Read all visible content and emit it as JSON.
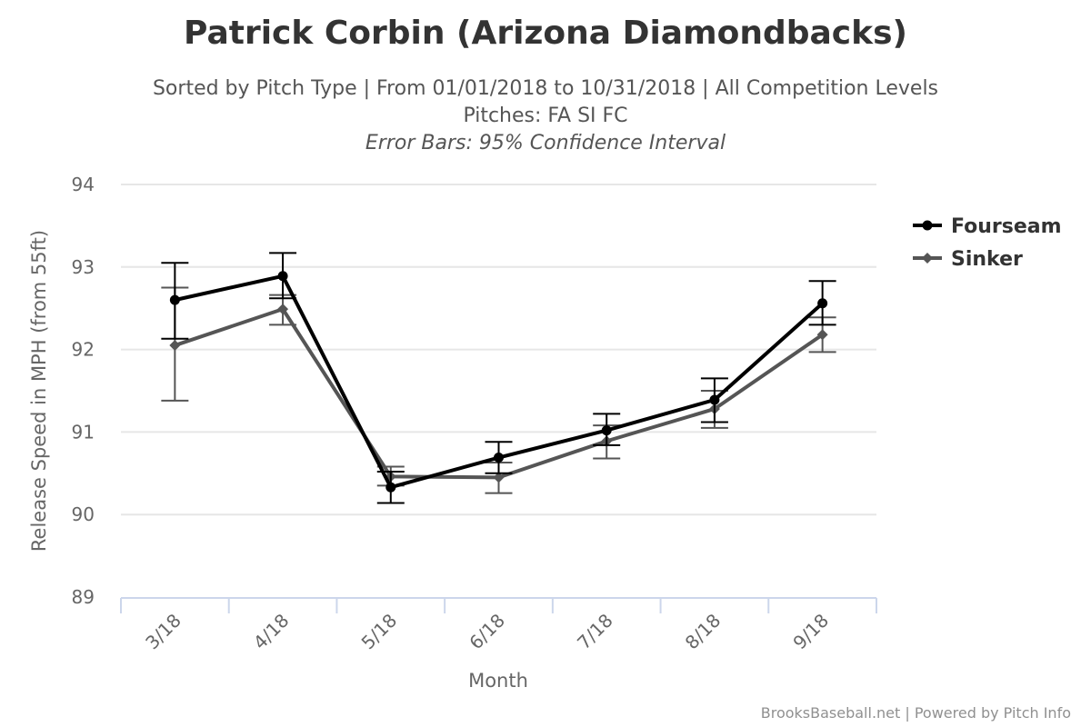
{
  "chart_data": {
    "type": "line",
    "title": "Patrick Corbin (Arizona Diamondbacks)",
    "subtitle_lines": [
      "Sorted by Pitch Type | From 01/01/2018 to 10/31/2018 | All Competition Levels",
      "Pitches: FA SI FC",
      "Error Bars: 95% Confidence Interval"
    ],
    "xlabel": "Month",
    "ylabel": "Release Speed in MPH (from 55ft)",
    "categories": [
      "3/18",
      "4/18",
      "5/18",
      "6/18",
      "7/18",
      "8/18",
      "9/18"
    ],
    "ylim": [
      89,
      94
    ],
    "yticks": [
      "89",
      "90",
      "91",
      "92",
      "93",
      "94"
    ],
    "grid": true,
    "legend_position": "right",
    "series": [
      {
        "name": "Fourseam",
        "color": "#000000",
        "marker": "circle",
        "values": [
          92.6,
          92.89,
          90.33,
          90.69,
          91.02,
          91.39,
          92.56
        ],
        "error_low": [
          92.13,
          92.62,
          90.14,
          90.5,
          90.84,
          91.12,
          92.3
        ],
        "error_high": [
          93.05,
          93.17,
          90.52,
          90.88,
          91.22,
          91.65,
          92.83
        ]
      },
      {
        "name": "Sinker",
        "color": "#555555",
        "marker": "diamond",
        "values": [
          92.05,
          92.49,
          90.46,
          90.45,
          90.89,
          91.28,
          92.18
        ],
        "error_low": [
          91.38,
          92.3,
          90.35,
          90.26,
          90.68,
          91.05,
          91.97
        ],
        "error_high": [
          92.75,
          92.66,
          90.58,
          90.63,
          91.08,
          91.5,
          92.39
        ]
      }
    ]
  },
  "credits": "BrooksBaseball.net | Powered by Pitch Info"
}
